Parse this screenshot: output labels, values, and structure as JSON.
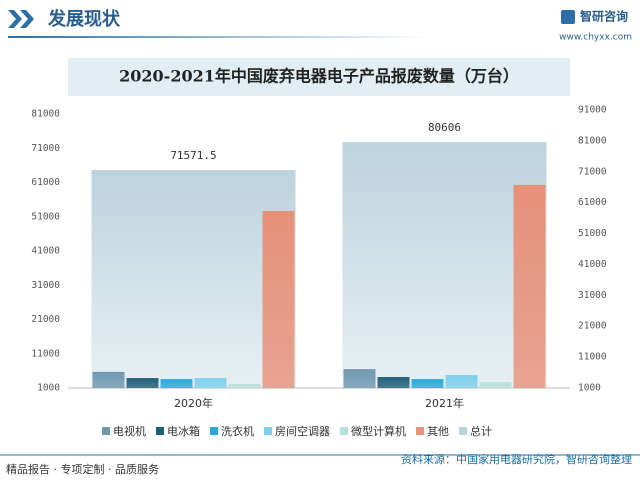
{
  "header": {
    "title": "发展现状",
    "logo": "智研咨询",
    "url": "www.chyxx.com"
  },
  "chart_data": {
    "type": "bar",
    "title": "2020-2021年中国废弃电器电子产品报废数量（万台）",
    "categories": [
      "2020年",
      "2021年"
    ],
    "series": [
      {
        "name": "总计",
        "color": "#bcd3dd",
        "values": [
          71571.5,
          80606
        ],
        "axis": "y2",
        "data_labels": true
      },
      {
        "name": "电视机",
        "color": "#6e98b0",
        "values": [
          5700,
          6500
        ]
      },
      {
        "name": "电冰箱",
        "color": "#1f5f7a",
        "values": [
          3900,
          4200
        ]
      },
      {
        "name": "洗衣机",
        "color": "#29a9d9",
        "values": [
          3600,
          3600
        ]
      },
      {
        "name": "房间空调器",
        "color": "#7fd0ee",
        "values": [
          3900,
          4800
        ]
      },
      {
        "name": "微型计算机",
        "color": "#b7e0dc",
        "values": [
          2200,
          2700
        ]
      },
      {
        "name": "其他",
        "color": "#e8917a",
        "values": [
          52700,
          60300
        ]
      }
    ],
    "ylim": [
      1000,
      81000
    ],
    "yticks": [
      1000,
      11000,
      21000,
      31000,
      41000,
      51000,
      61000,
      71000,
      81000
    ],
    "y2lim": [
      1000,
      91000
    ],
    "y2ticks": [
      1000,
      11000,
      21000,
      31000,
      41000,
      51000,
      61000,
      71000,
      81000,
      91000
    ]
  },
  "footer": {
    "left": "精品报告 · 专项定制 · 品质服务",
    "source": "资料来源：中国家用电器研究院，智研咨询整理"
  }
}
